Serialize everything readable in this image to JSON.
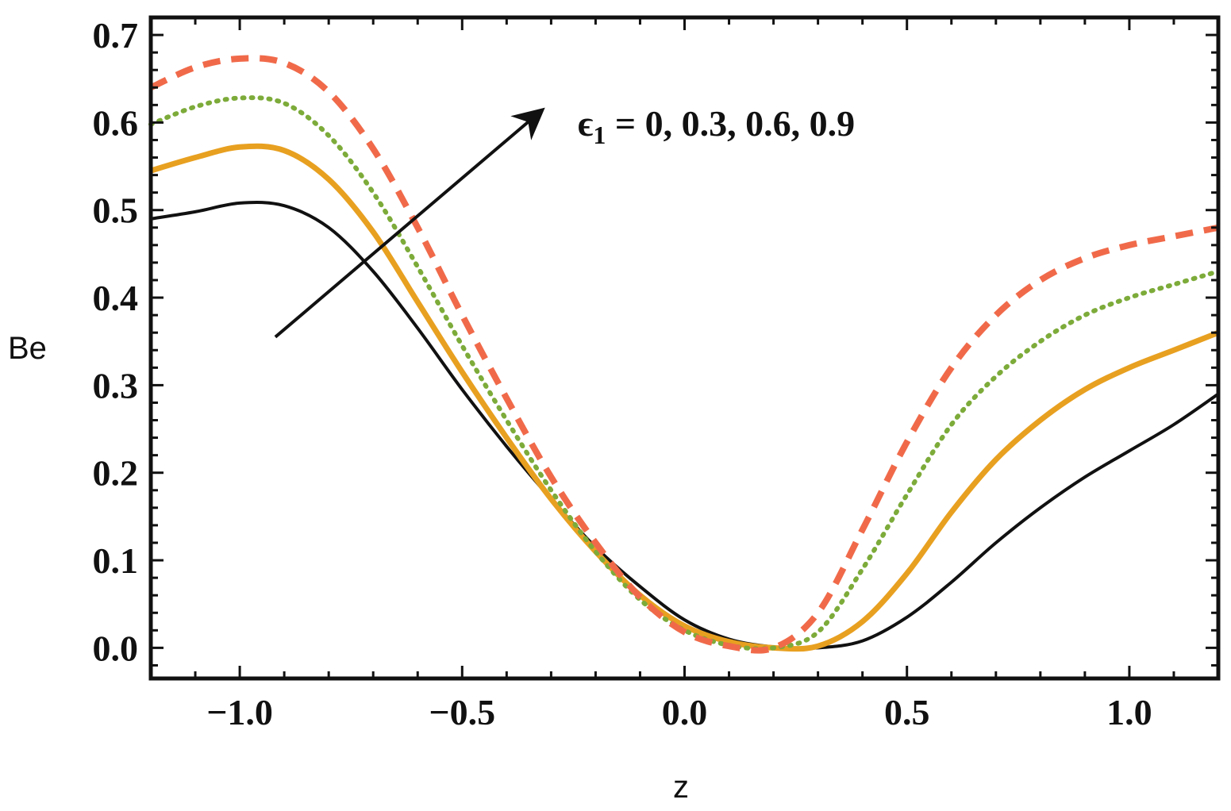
{
  "chart_data": {
    "type": "line",
    "title": "",
    "xlabel": "z",
    "ylabel": "Be",
    "xlim": [
      -1.2,
      1.2
    ],
    "ylim": [
      -0.035,
      0.72
    ],
    "xticks": [
      -1.0,
      -0.5,
      0.0,
      0.5,
      1.0
    ],
    "xtick_labels": [
      "−1.0",
      "−0.5",
      "0.0",
      "0.5",
      "1.0"
    ],
    "yticks": [
      0.0,
      0.1,
      0.2,
      0.3,
      0.4,
      0.5,
      0.6,
      0.7
    ],
    "ytick_labels": [
      "0.0",
      "0.1",
      "0.2",
      "0.3",
      "0.4",
      "0.5",
      "0.6",
      "0.7"
    ],
    "grid": false,
    "annotation": {
      "symbol": "ϵ",
      "subscript": "1",
      "text": " = 0,  0.3,  0.6,  0.9",
      "arrow_from": [
        -0.92,
        0.355
      ],
      "arrow_to": [
        -0.33,
        0.61
      ],
      "label_at": [
        -0.24,
        0.585
      ]
    },
    "x": [
      -1.2,
      -1.1,
      -1.0,
      -0.9,
      -0.8,
      -0.7,
      -0.6,
      -0.5,
      -0.4,
      -0.3,
      -0.2,
      -0.1,
      0.0,
      0.1,
      0.2,
      0.3,
      0.4,
      0.5,
      0.6,
      0.7,
      0.8,
      0.9,
      1.0,
      1.1,
      1.2
    ],
    "series": [
      {
        "name": "ϵ1 = 0",
        "color": "#111111",
        "style": "solid",
        "values": [
          0.49,
          0.498,
          0.508,
          0.505,
          0.48,
          0.43,
          0.365,
          0.295,
          0.23,
          0.17,
          0.115,
          0.07,
          0.032,
          0.01,
          0.001,
          0.0,
          0.008,
          0.035,
          0.075,
          0.12,
          0.16,
          0.195,
          0.225,
          0.255,
          0.29
        ]
      },
      {
        "name": "ϵ1 = 0.3",
        "color": "#e8a020",
        "style": "solid-thick",
        "values": [
          0.545,
          0.56,
          0.572,
          0.568,
          0.535,
          0.475,
          0.395,
          0.315,
          0.24,
          0.17,
          0.11,
          0.06,
          0.025,
          0.007,
          0.0,
          0.002,
          0.03,
          0.085,
          0.155,
          0.215,
          0.26,
          0.295,
          0.32,
          0.34,
          0.36
        ]
      },
      {
        "name": "ϵ1 = 0.6",
        "color": "#7dab3a",
        "style": "dotted",
        "values": [
          0.598,
          0.618,
          0.628,
          0.622,
          0.585,
          0.52,
          0.435,
          0.345,
          0.26,
          0.18,
          0.11,
          0.055,
          0.02,
          0.003,
          0.0,
          0.018,
          0.09,
          0.175,
          0.255,
          0.31,
          0.35,
          0.38,
          0.4,
          0.415,
          0.43
        ]
      },
      {
        "name": "ϵ1 = 0.9",
        "color": "#f06a4a",
        "style": "dashed",
        "values": [
          0.64,
          0.663,
          0.673,
          0.668,
          0.635,
          0.57,
          0.48,
          0.38,
          0.285,
          0.195,
          0.12,
          0.058,
          0.018,
          0.002,
          0.0,
          0.04,
          0.135,
          0.235,
          0.32,
          0.38,
          0.42,
          0.445,
          0.46,
          0.47,
          0.48
        ]
      }
    ]
  }
}
